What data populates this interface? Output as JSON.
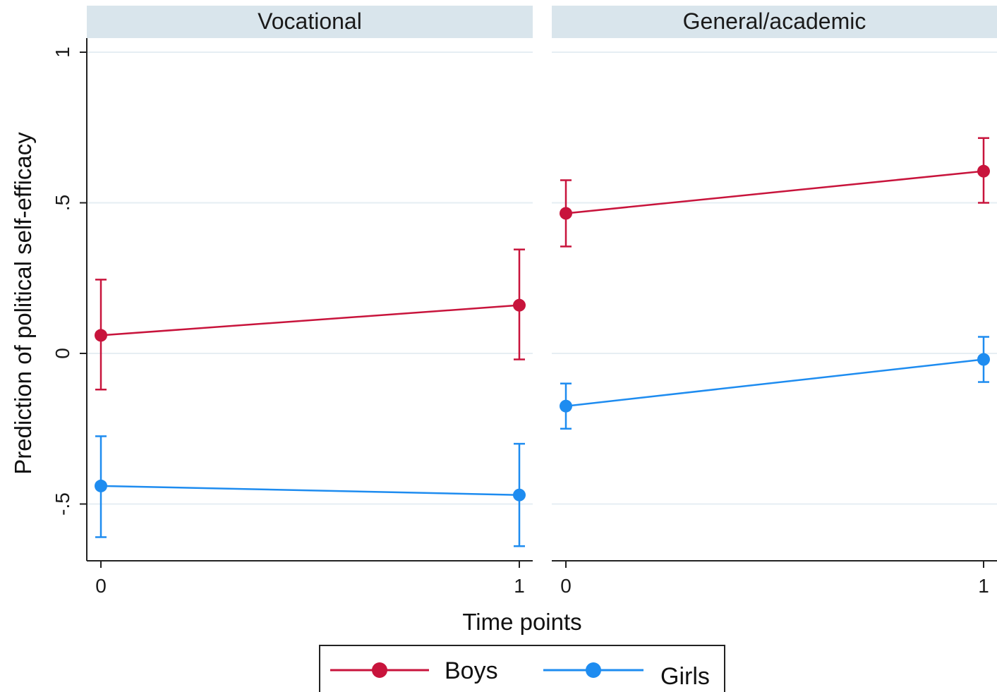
{
  "chart_data": {
    "type": "line",
    "ylabel": "Prediction of political self-efficacy",
    "xlabel": "Time points",
    "ylim": [
      -0.68,
      1.0
    ],
    "yticks": [
      {
        "value": -0.5,
        "label": "-.5"
      },
      {
        "value": 0,
        "label": "0"
      },
      {
        "value": 0.5,
        "label": ".5"
      },
      {
        "value": 1,
        "label": "1"
      }
    ],
    "xticks": [
      {
        "value": 0,
        "label": "0"
      },
      {
        "value": 1,
        "label": "1"
      }
    ],
    "grid": true,
    "legend_position": "bottom",
    "colors": {
      "Boys": "#c8143c",
      "Girls": "#1e8cf0",
      "strip": "#d9e5ec",
      "grid": "#e6eef3"
    },
    "panels": [
      {
        "title": "Vocational",
        "series": [
          {
            "name": "Boys",
            "x": [
              0,
              1
            ],
            "y": [
              0.06,
              0.16
            ],
            "ci_low": [
              -0.12,
              -0.02
            ],
            "ci_high": [
              0.245,
              0.345
            ]
          },
          {
            "name": "Girls",
            "x": [
              0,
              1
            ],
            "y": [
              -0.44,
              -0.47
            ],
            "ci_low": [
              -0.61,
              -0.64
            ],
            "ci_high": [
              -0.275,
              -0.3
            ]
          }
        ]
      },
      {
        "title": "General/academic",
        "series": [
          {
            "name": "Boys",
            "x": [
              0,
              1
            ],
            "y": [
              0.465,
              0.605
            ],
            "ci_low": [
              0.355,
              0.5
            ],
            "ci_high": [
              0.575,
              0.715
            ]
          },
          {
            "name": "Girls",
            "x": [
              0,
              1
            ],
            "y": [
              -0.175,
              -0.02
            ],
            "ci_low": [
              -0.25,
              -0.095
            ],
            "ci_high": [
              -0.1,
              0.055
            ]
          }
        ]
      }
    ],
    "legend": [
      "Boys",
      "Girls"
    ]
  }
}
